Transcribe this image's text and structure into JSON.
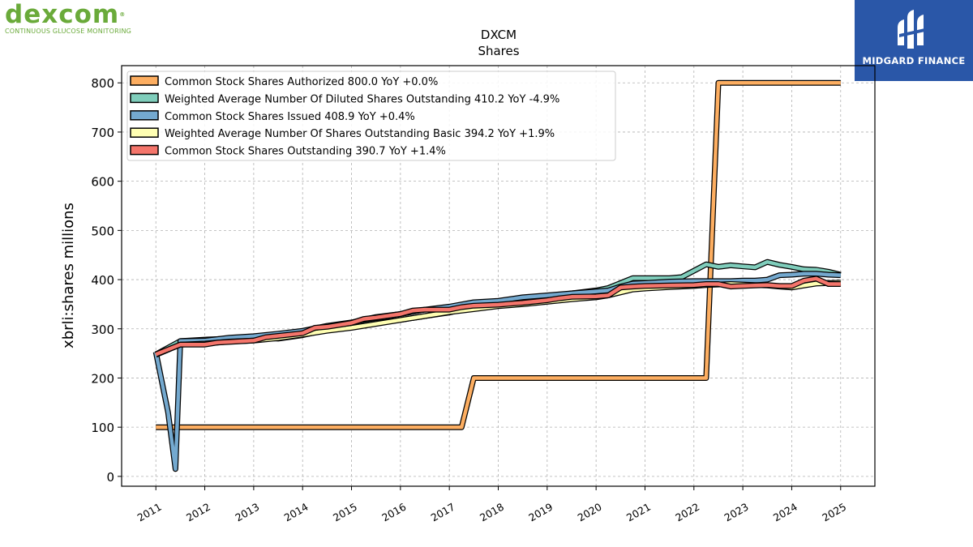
{
  "brand": {
    "left_logo_text": "dexcom",
    "left_logo_mark": "®",
    "left_tagline": "CONTINUOUS GLUCOSE MONITORING",
    "right_logo_text": "MIDGARD FINANCE"
  },
  "chart_data": {
    "type": "line",
    "title": "DXCM",
    "subtitle": "Shares",
    "ylabel": "xbrli:shares millions",
    "xlabel": "",
    "xlim": [
      2010.3,
      2025.7
    ],
    "ylim": [
      -20,
      835
    ],
    "xticks": [
      2011,
      2012,
      2013,
      2014,
      2015,
      2016,
      2017,
      2018,
      2019,
      2020,
      2021,
      2022,
      2023,
      2024,
      2025
    ],
    "yticks": [
      0,
      100,
      200,
      300,
      400,
      500,
      600,
      700,
      800
    ],
    "grid": true,
    "legend_position": "upper-left",
    "series": [
      {
        "name": "Common Stock Shares Authorized",
        "legend": "Common Stock Shares Authorized  800.0 YoY +0.0%",
        "color": "#fdae61",
        "points": [
          [
            2011.0,
            100
          ],
          [
            2017.25,
            100
          ],
          [
            2017.5,
            200
          ],
          [
            2022.25,
            200
          ],
          [
            2022.5,
            800
          ],
          [
            2025.0,
            800
          ]
        ]
      },
      {
        "name": "Weighted Average Number Of Diluted Shares Outstanding",
        "legend": "Weighted Average Number Of Diluted Shares Outstanding  410.2 YoY -4.9%",
        "color": "#7fcdbb",
        "points": [
          [
            2011.0,
            248
          ],
          [
            2011.5,
            275
          ],
          [
            2012.0,
            278
          ],
          [
            2012.5,
            280
          ],
          [
            2013.0,
            283
          ],
          [
            2013.5,
            280
          ],
          [
            2014.0,
            287
          ],
          [
            2014.5,
            298
          ],
          [
            2015.0,
            305
          ],
          [
            2015.5,
            312
          ],
          [
            2016.0,
            318
          ],
          [
            2016.5,
            326
          ],
          [
            2017.0,
            333
          ],
          [
            2017.5,
            345
          ],
          [
            2018.0,
            350
          ],
          [
            2018.5,
            358
          ],
          [
            2019.0,
            364
          ],
          [
            2019.5,
            372
          ],
          [
            2020.0,
            378
          ],
          [
            2020.25,
            383
          ],
          [
            2020.5,
            393
          ],
          [
            2020.75,
            403
          ],
          [
            2021.0,
            403
          ],
          [
            2021.5,
            403
          ],
          [
            2021.75,
            405
          ],
          [
            2022.0,
            418
          ],
          [
            2022.25,
            431
          ],
          [
            2022.5,
            426
          ],
          [
            2022.75,
            429
          ],
          [
            2023.0,
            427
          ],
          [
            2023.25,
            425
          ],
          [
            2023.5,
            436
          ],
          [
            2023.75,
            430
          ],
          [
            2024.0,
            426
          ],
          [
            2024.25,
            421
          ],
          [
            2024.5,
            420
          ],
          [
            2024.75,
            416
          ],
          [
            2025.0,
            410
          ]
        ]
      },
      {
        "name": "Common Stock Shares Issued",
        "legend": "Common Stock Shares Issued  408.9 YoY +0.4%",
        "color": "#74a9cf",
        "points": [
          [
            2011.0,
            253
          ],
          [
            2011.25,
            130
          ],
          [
            2011.4,
            15
          ],
          [
            2011.5,
            275
          ],
          [
            2012.0,
            276
          ],
          [
            2012.5,
            282
          ],
          [
            2013.0,
            285
          ],
          [
            2013.5,
            290
          ],
          [
            2014.0,
            296
          ],
          [
            2014.5,
            306
          ],
          [
            2015.0,
            313
          ],
          [
            2015.5,
            324
          ],
          [
            2016.0,
            330
          ],
          [
            2016.5,
            339
          ],
          [
            2017.0,
            345
          ],
          [
            2017.5,
            354
          ],
          [
            2018.0,
            357
          ],
          [
            2018.5,
            364
          ],
          [
            2019.0,
            368
          ],
          [
            2019.5,
            372
          ],
          [
            2020.0,
            376
          ],
          [
            2020.25,
            378
          ],
          [
            2020.5,
            386
          ],
          [
            2020.75,
            392
          ],
          [
            2021.0,
            393
          ],
          [
            2021.5,
            396
          ],
          [
            2022.0,
            397
          ],
          [
            2022.25,
            397
          ],
          [
            2022.5,
            397
          ],
          [
            2022.75,
            397
          ],
          [
            2023.0,
            398
          ],
          [
            2023.25,
            398
          ],
          [
            2023.5,
            400
          ],
          [
            2023.75,
            409
          ],
          [
            2024.0,
            410
          ],
          [
            2024.25,
            412
          ],
          [
            2024.5,
            412
          ],
          [
            2024.75,
            410
          ],
          [
            2025.0,
            409
          ]
        ]
      },
      {
        "name": "Weighted Average Number Of Shares Outstanding Basic",
        "legend": "Weighted Average Number Of Shares Outstanding Basic  394.2 YoY +1.9%",
        "color": "#ffffb3",
        "points": [
          [
            2011.0,
            247
          ],
          [
            2011.5,
            268
          ],
          [
            2012.0,
            270
          ],
          [
            2012.5,
            274
          ],
          [
            2013.0,
            276
          ],
          [
            2013.5,
            281
          ],
          [
            2014.0,
            288
          ],
          [
            2014.5,
            296
          ],
          [
            2015.0,
            302
          ],
          [
            2015.5,
            310
          ],
          [
            2016.0,
            318
          ],
          [
            2016.5,
            326
          ],
          [
            2017.0,
            334
          ],
          [
            2017.5,
            340
          ],
          [
            2018.0,
            346
          ],
          [
            2018.5,
            350
          ],
          [
            2019.0,
            355
          ],
          [
            2019.5,
            360
          ],
          [
            2020.0,
            364
          ],
          [
            2020.25,
            368
          ],
          [
            2020.5,
            374
          ],
          [
            2020.75,
            380
          ],
          [
            2021.0,
            382
          ],
          [
            2021.5,
            385
          ],
          [
            2022.0,
            387
          ],
          [
            2022.25,
            389
          ],
          [
            2022.5,
            390
          ],
          [
            2022.75,
            391
          ],
          [
            2023.0,
            390
          ],
          [
            2023.25,
            389
          ],
          [
            2023.5,
            388
          ],
          [
            2023.75,
            386
          ],
          [
            2024.0,
            384
          ],
          [
            2024.25,
            388
          ],
          [
            2024.5,
            392
          ],
          [
            2024.75,
            393
          ],
          [
            2025.0,
            394
          ]
        ]
      },
      {
        "name": "Common Stock Shares Outstanding",
        "legend": "Common Stock Shares Outstanding  390.7 YoY +1.4%",
        "color": "#f4756b",
        "points": [
          [
            2011.0,
            248
          ],
          [
            2011.5,
            268
          ],
          [
            2012.0,
            268
          ],
          [
            2012.25,
            272
          ],
          [
            2013.0,
            276
          ],
          [
            2013.25,
            283
          ],
          [
            2014.0,
            291
          ],
          [
            2014.25,
            302
          ],
          [
            2014.5,
            304
          ],
          [
            2015.0,
            312
          ],
          [
            2015.25,
            320
          ],
          [
            2015.5,
            323
          ],
          [
            2016.0,
            330
          ],
          [
            2016.25,
            337
          ],
          [
            2016.5,
            339
          ],
          [
            2017.0,
            339
          ],
          [
            2017.25,
            344
          ],
          [
            2017.5,
            347
          ],
          [
            2018.0,
            349
          ],
          [
            2018.25,
            351
          ],
          [
            2018.5,
            353
          ],
          [
            2019.0,
            358
          ],
          [
            2019.25,
            362
          ],
          [
            2019.5,
            365
          ],
          [
            2020.0,
            366
          ],
          [
            2020.25,
            368
          ],
          [
            2020.5,
            384
          ],
          [
            2020.75,
            386
          ],
          [
            2021.0,
            387
          ],
          [
            2021.5,
            388
          ],
          [
            2022.0,
            389
          ],
          [
            2022.25,
            391
          ],
          [
            2022.5,
            391
          ],
          [
            2022.75,
            386
          ],
          [
            2023.0,
            387
          ],
          [
            2023.25,
            388
          ],
          [
            2023.5,
            389
          ],
          [
            2023.75,
            387
          ],
          [
            2024.0,
            387
          ],
          [
            2024.25,
            398
          ],
          [
            2024.5,
            402
          ],
          [
            2024.75,
            391
          ],
          [
            2025.0,
            391
          ]
        ]
      }
    ]
  }
}
